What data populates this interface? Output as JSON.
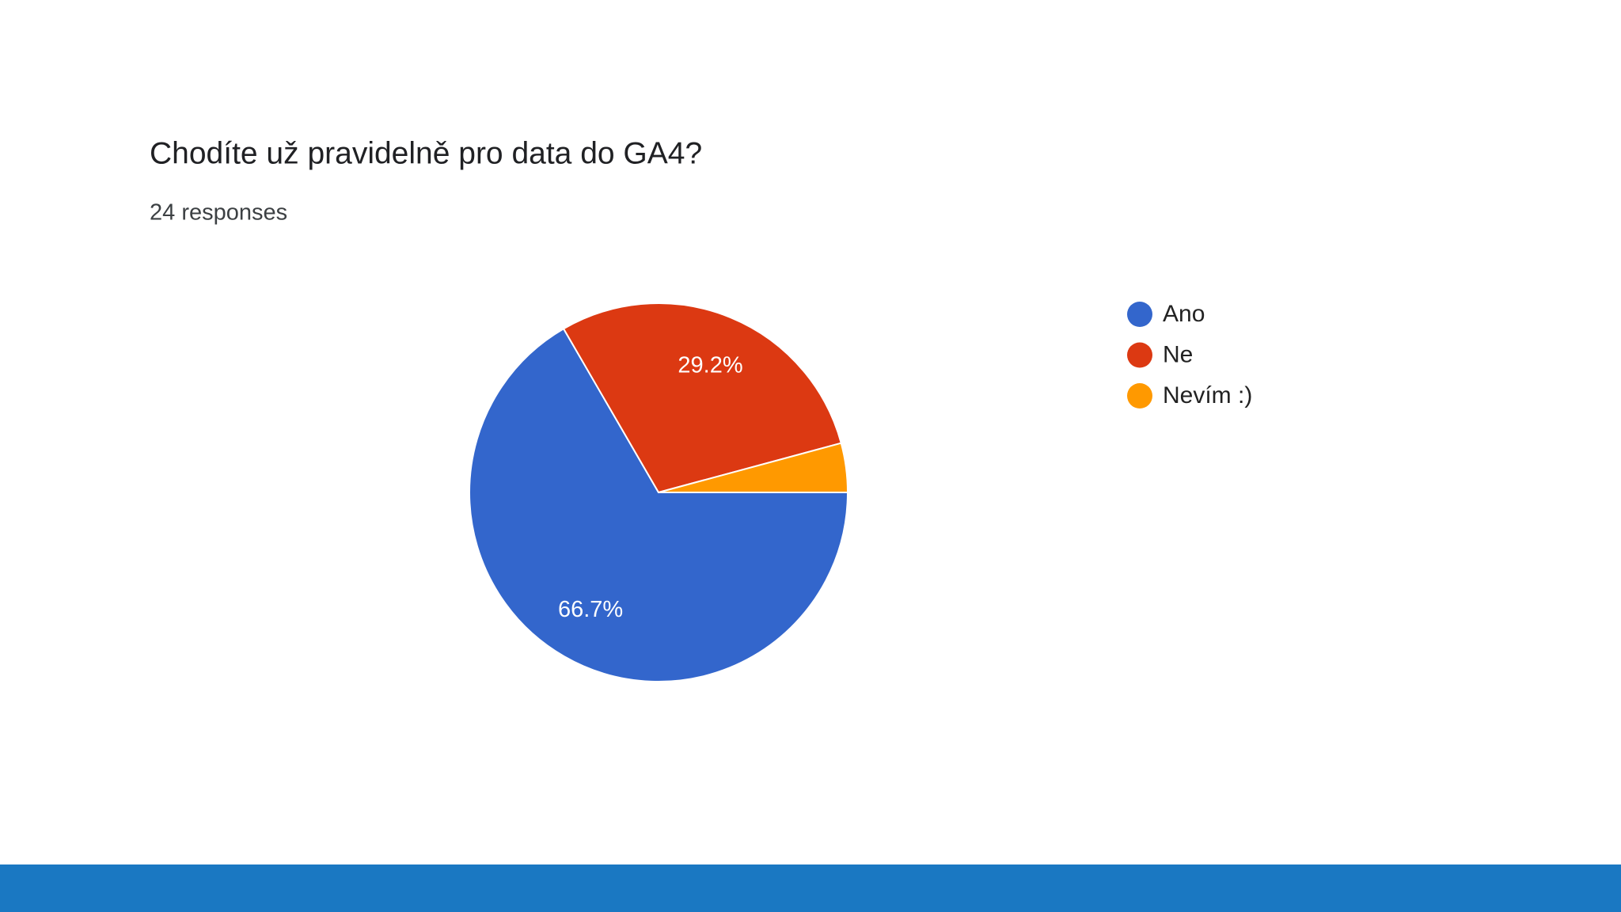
{
  "chart_data": {
    "type": "pie",
    "title": "Chodíte už pravidelně pro data do GA4?",
    "subtitle": "24 responses",
    "categories": [
      "Ano",
      "Ne",
      "Nevím :)"
    ],
    "values": [
      66.7,
      29.2,
      4.2
    ],
    "value_labels": [
      "66.7%",
      "29.2%",
      null
    ],
    "colors": [
      "#3366cc",
      "#dc3912",
      "#ff9900"
    ],
    "legend": "right"
  }
}
